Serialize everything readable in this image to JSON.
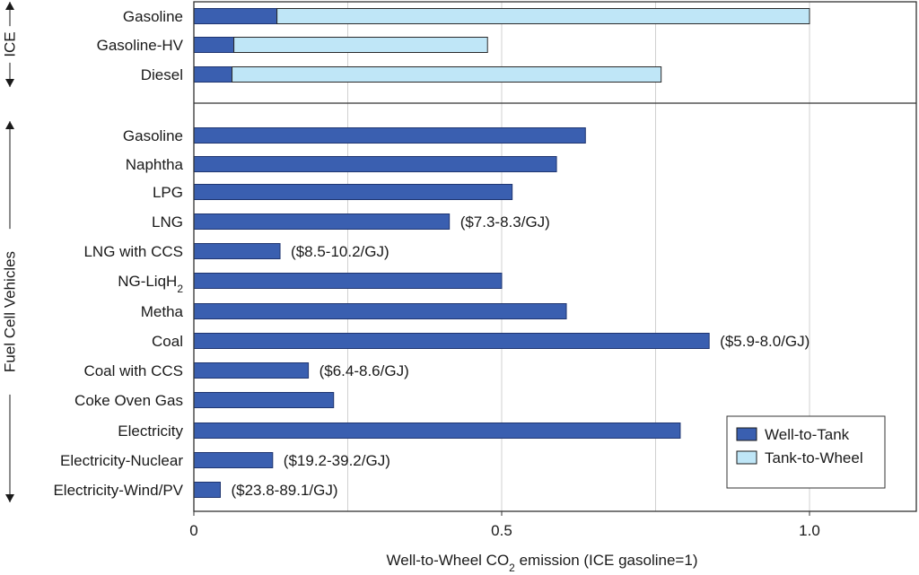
{
  "chart_data": {
    "type": "bar",
    "orientation": "horizontal",
    "stacked": true,
    "xlabel_parts": [
      "Well-to-Wheel CO",
      "2",
      " emission (ICE gasoline=1)"
    ],
    "xlim": [
      0,
      1.2
    ],
    "xticks": [
      {
        "value": 0,
        "label": "0"
      },
      {
        "value": 0.5,
        "label": "0.5"
      },
      {
        "value": 1.0,
        "label": "1.0"
      }
    ],
    "grid": "vertical",
    "legend_position": "bottom-right",
    "colors": {
      "well_to_tank": "#3a5fb0",
      "tank_to_wheel": "#bfe6f7",
      "grid": "#d0d0d0",
      "frame": "#333333"
    },
    "groups": [
      {
        "name": "ICE",
        "first": 0,
        "last": 2
      },
      {
        "name": "Fuel Cell Vehicles",
        "first": 3,
        "last": 15
      }
    ],
    "series": [
      {
        "name": "Well-to-Tank",
        "key": "well_to_tank"
      },
      {
        "name": "Tank-to-Wheel",
        "key": "tank_to_wheel"
      }
    ],
    "categories": [
      {
        "label": "Gasoline",
        "sub": "",
        "well_to_tank": 0.135,
        "tank_to_wheel": 0.865,
        "annotation": ""
      },
      {
        "label": "Gasoline-HV",
        "sub": "",
        "well_to_tank": 0.065,
        "tank_to_wheel": 0.412,
        "annotation": ""
      },
      {
        "label": "Diesel",
        "sub": "",
        "well_to_tank": 0.062,
        "tank_to_wheel": 0.697,
        "annotation": ""
      },
      {
        "label": "Gasoline",
        "sub": "",
        "well_to_tank": 0.636,
        "tank_to_wheel": 0,
        "annotation": ""
      },
      {
        "label": "Naphtha",
        "sub": "",
        "well_to_tank": 0.589,
        "tank_to_wheel": 0,
        "annotation": ""
      },
      {
        "label": "LPG",
        "sub": "",
        "well_to_tank": 0.517,
        "tank_to_wheel": 0,
        "annotation": ""
      },
      {
        "label": "LNG",
        "sub": "",
        "well_to_tank": 0.415,
        "tank_to_wheel": 0,
        "annotation": "($7.3-8.3/GJ)"
      },
      {
        "label": "LNG with CCS",
        "sub": "",
        "well_to_tank": 0.14,
        "tank_to_wheel": 0,
        "annotation": "($8.5-10.2/GJ)"
      },
      {
        "label": "NG-LiqH",
        "sub": "2",
        "well_to_tank": 0.5,
        "tank_to_wheel": 0,
        "annotation": ""
      },
      {
        "label": "Metha",
        "sub": "",
        "well_to_tank": 0.605,
        "tank_to_wheel": 0,
        "annotation": ""
      },
      {
        "label": "Coal",
        "sub": "",
        "well_to_tank": 0.837,
        "tank_to_wheel": 0,
        "annotation": "($5.9-8.0/GJ)"
      },
      {
        "label": "Coal with CCS",
        "sub": "",
        "well_to_tank": 0.186,
        "tank_to_wheel": 0,
        "annotation": "($6.4-8.6/GJ)"
      },
      {
        "label": "Coke Oven Gas",
        "sub": "",
        "well_to_tank": 0.227,
        "tank_to_wheel": 0,
        "annotation": ""
      },
      {
        "label": "Electricity",
        "sub": "",
        "well_to_tank": 0.79,
        "tank_to_wheel": 0,
        "annotation": ""
      },
      {
        "label": "Electricity-Nuclear",
        "sub": "",
        "well_to_tank": 0.128,
        "tank_to_wheel": 0,
        "annotation": "($19.2-39.2/GJ)"
      },
      {
        "label": "Electricity-Wind/PV",
        "sub": "",
        "well_to_tank": 0.043,
        "tank_to_wheel": 0,
        "annotation": "($23.8-89.1/GJ)"
      }
    ]
  }
}
